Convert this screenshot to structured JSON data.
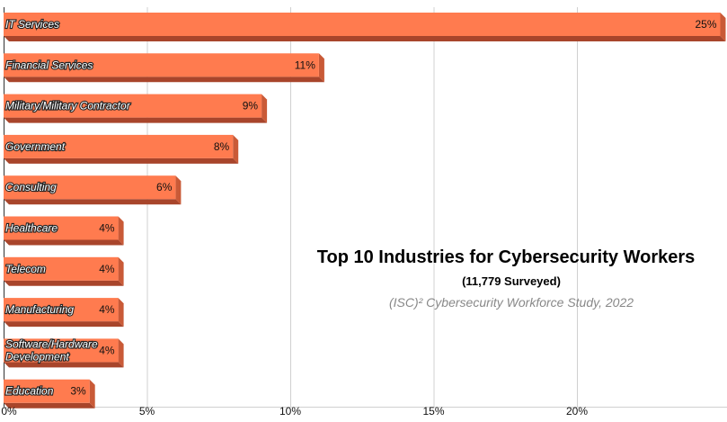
{
  "chart_data": {
    "type": "bar",
    "orientation": "horizontal",
    "title": "Top 10 Industries for Cybersecurity Workers",
    "subtitle": "(11,779 Surveyed)",
    "source": "(ISC)² Cybersecurity Workforce Study, 2022",
    "categories": [
      "IT Services",
      "Financial Services",
      "Military/Military Contractor",
      "Government",
      "Consulting",
      "Healthcare",
      "Telecom",
      "Manufacturing",
      "Software/Hardware Development",
      "Education"
    ],
    "values": [
      25,
      11,
      9,
      8,
      6,
      4,
      4,
      4,
      4,
      3
    ],
    "value_labels": [
      "25%",
      "11%",
      "9%",
      "8%",
      "6%",
      "4%",
      "4%",
      "4%",
      "4%",
      "3%"
    ],
    "x_ticks": [
      0,
      5,
      10,
      15,
      20
    ],
    "x_tick_labels": [
      "0%",
      "5%",
      "10%",
      "15%",
      "20%"
    ],
    "xlim": [
      0,
      25
    ],
    "grid": true,
    "legend": "none",
    "colors": {
      "bar_face": "#ff7b4f",
      "bar_side": "#a8452b",
      "grid": "#d0d0d0"
    }
  }
}
